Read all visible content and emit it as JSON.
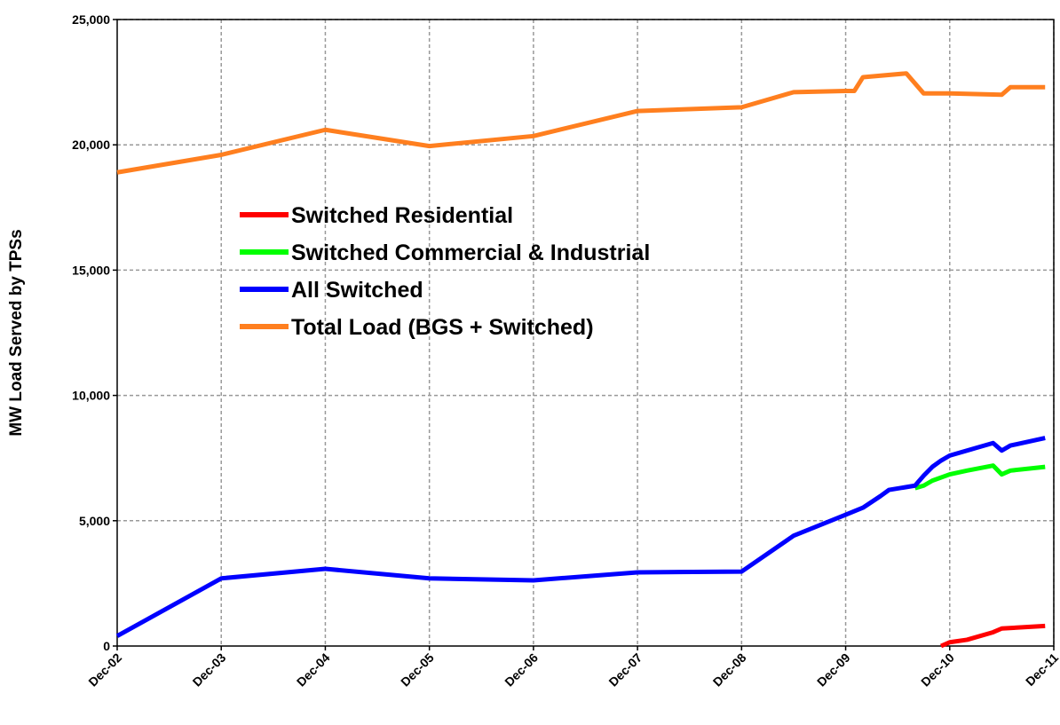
{
  "chart_data": {
    "type": "line",
    "y_label": "MW Load Served by TPSs",
    "ylim": [
      0,
      25000
    ],
    "yticks": [
      0,
      {
        "value": 5000,
        "label": "5,000"
      },
      {
        "value": 10000,
        "label": "10,000"
      },
      {
        "value": 15000,
        "label": "15,000"
      },
      {
        "value": 20000,
        "label": "20,000"
      },
      {
        "value": 25000,
        "label": "25,000"
      }
    ],
    "xlim": [
      "2002-12",
      "2011-12"
    ],
    "xticks": [
      {
        "value": "2002-12",
        "label": "Dec-02"
      },
      {
        "value": "2003-12",
        "label": "Dec-03"
      },
      {
        "value": "2004-12",
        "label": "Dec-04"
      },
      {
        "value": "2005-12",
        "label": "Dec-05"
      },
      {
        "value": "2006-12",
        "label": "Dec-06"
      },
      {
        "value": "2007-12",
        "label": "Dec-07"
      },
      {
        "value": "2008-12",
        "label": "Dec-08"
      },
      {
        "value": "2009-12",
        "label": "Dec-09"
      },
      {
        "value": "2010-12",
        "label": "Dec-10"
      },
      {
        "value": "2011-12",
        "label": "Dec-11"
      }
    ],
    "grid": true,
    "legend_loc": "upper left",
    "series": [
      {
        "name": "Switched Residential",
        "color": "#ff0000",
        "x": [
          "2010-11",
          "2010-12",
          "2011-02",
          "2011-05",
          "2011-06",
          "2011-11"
        ],
        "values": [
          0,
          150,
          250,
          550,
          700,
          800
        ]
      },
      {
        "name": "Switched Commercial & Industrial",
        "color": "#00ff00",
        "x": [
          "2010-08",
          "2010-09",
          "2010-10",
          "2010-12",
          "2011-02",
          "2011-05",
          "2011-06",
          "2011-07",
          "2011-11"
        ],
        "values": [
          6300,
          6400,
          6600,
          6850,
          7000,
          7200,
          6850,
          7000,
          7150
        ]
      },
      {
        "name": "All Switched",
        "color": "#0000ff",
        "x": [
          "2002-12",
          "2003-12",
          "2004-12",
          "2005-12",
          "2006-12",
          "2007-12",
          "2008-12",
          "2009-06",
          "2009-12",
          "2010-02",
          "2010-04",
          "2010-05",
          "2010-08",
          "2010-09",
          "2010-10",
          "2010-11",
          "2010-12",
          "2011-03",
          "2011-05",
          "2011-06",
          "2011-07",
          "2011-11"
        ],
        "values": [
          400,
          2700,
          3080,
          2700,
          2620,
          2940,
          2970,
          4400,
          5240,
          5520,
          5980,
          6230,
          6400,
          6800,
          7150,
          7400,
          7600,
          7900,
          8100,
          7800,
          8000,
          8300
        ]
      },
      {
        "name": "Total Load (BGS + Switched)",
        "color": "#ff7f1f",
        "x": [
          "2002-12",
          "2003-12",
          "2004-12",
          "2005-12",
          "2006-12",
          "2007-12",
          "2008-12",
          "2009-06",
          "2009-12",
          "2010-01",
          "2010-02",
          "2010-07",
          "2010-09",
          "2010-12",
          "2011-06",
          "2011-07",
          "2011-11"
        ],
        "values": [
          18900,
          19600,
          20600,
          19950,
          20350,
          21350,
          21500,
          22100,
          22150,
          22150,
          22700,
          22850,
          22050,
          22050,
          22000,
          22300,
          22300
        ]
      }
    ]
  }
}
